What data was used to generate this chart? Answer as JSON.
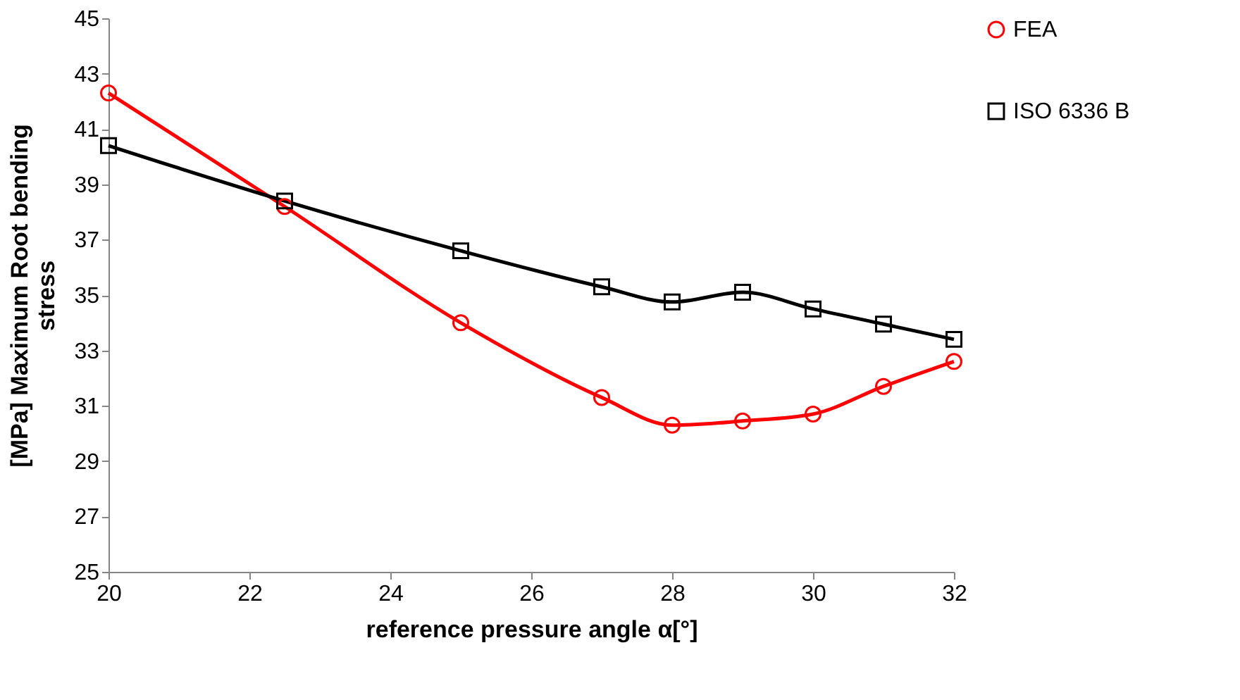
{
  "chart_data": {
    "type": "line",
    "xlabel": "reference pressure angle α[°]",
    "ylabel": "[MPa] Maximum Root bending stress",
    "x": [
      20,
      22.5,
      25,
      27,
      28,
      29,
      30,
      31,
      32
    ],
    "series": [
      {
        "name": "FEA",
        "color": "#ff0000",
        "marker": "circle",
        "values": [
          42.3,
          38.2,
          34.0,
          31.3,
          30.3,
          30.45,
          30.7,
          31.7,
          32.6
        ]
      },
      {
        "name": "ISO 6336 B",
        "color": "#000000",
        "marker": "square",
        "values": [
          40.4,
          38.4,
          36.6,
          35.3,
          34.75,
          35.1,
          34.5,
          33.95,
          33.4
        ]
      }
    ],
    "xlim": [
      20,
      32
    ],
    "xticks": [
      20,
      22,
      24,
      26,
      28,
      30,
      32
    ],
    "ylim": [
      25,
      45
    ],
    "yticks": [
      25,
      27,
      29,
      31,
      33,
      35,
      37,
      39,
      41,
      43,
      45
    ],
    "grid": false,
    "legend": "right",
    "line_style": "solid"
  }
}
